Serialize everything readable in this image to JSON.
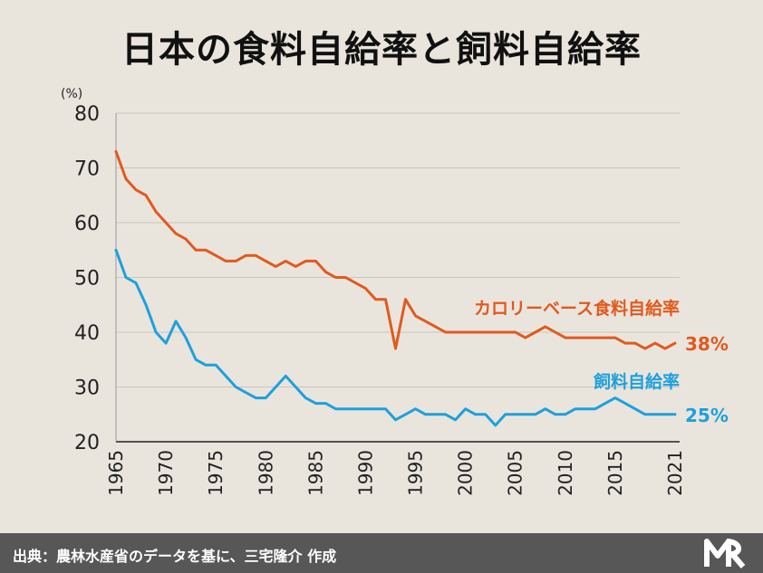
{
  "title": "日本の食料自給率と飼料自給率",
  "source": "出典：農林水産省のデータを基に、三宅隆介 作成",
  "colors": {
    "calorie": "#e05a1e",
    "feed": "#1ea0dc",
    "grid": "#c9c6c0",
    "background": "#e9e5dd"
  },
  "chart_data": {
    "type": "line",
    "ylabel": "(%)",
    "ylim": [
      20,
      80
    ],
    "yticks": [
      20,
      30,
      40,
      50,
      60,
      70,
      80
    ],
    "xlim": [
      1965,
      2021
    ],
    "xticks": [
      1965,
      1970,
      1975,
      1980,
      1985,
      1990,
      1995,
      2000,
      2005,
      2010,
      2015,
      2021
    ],
    "grid": true,
    "x": [
      1965,
      1966,
      1967,
      1968,
      1969,
      1970,
      1971,
      1972,
      1973,
      1974,
      1975,
      1976,
      1977,
      1978,
      1979,
      1980,
      1981,
      1982,
      1983,
      1984,
      1985,
      1986,
      1987,
      1988,
      1989,
      1990,
      1991,
      1992,
      1993,
      1994,
      1995,
      1996,
      1997,
      1998,
      1999,
      2000,
      2001,
      2002,
      2003,
      2004,
      2005,
      2006,
      2007,
      2008,
      2009,
      2010,
      2011,
      2012,
      2013,
      2014,
      2015,
      2016,
      2017,
      2018,
      2019,
      2020,
      2021
    ],
    "series": [
      {
        "name": "カロリーベース食料自給率",
        "end_label": "38%",
        "values": [
          73,
          68,
          66,
          65,
          62,
          60,
          58,
          57,
          55,
          55,
          54,
          53,
          53,
          54,
          54,
          53,
          52,
          53,
          52,
          53,
          53,
          51,
          50,
          50,
          49,
          48,
          46,
          46,
          37,
          46,
          43,
          42,
          41,
          40,
          40,
          40,
          40,
          40,
          40,
          40,
          40,
          39,
          40,
          41,
          40,
          39,
          39,
          39,
          39,
          39,
          39,
          38,
          38,
          37,
          38,
          37,
          38
        ]
      },
      {
        "name": "飼料自給率",
        "end_label": "25%",
        "values": [
          55,
          50,
          49,
          45,
          40,
          38,
          42,
          39,
          35,
          34,
          34,
          32,
          30,
          29,
          28,
          28,
          30,
          32,
          30,
          28,
          27,
          27,
          26,
          26,
          26,
          26,
          26,
          26,
          24,
          25,
          26,
          25,
          25,
          25,
          24,
          26,
          25,
          25,
          23,
          25,
          25,
          25,
          25,
          26,
          25,
          25,
          26,
          26,
          26,
          27,
          28,
          27,
          26,
          25,
          25,
          25,
          25
        ]
      }
    ]
  }
}
